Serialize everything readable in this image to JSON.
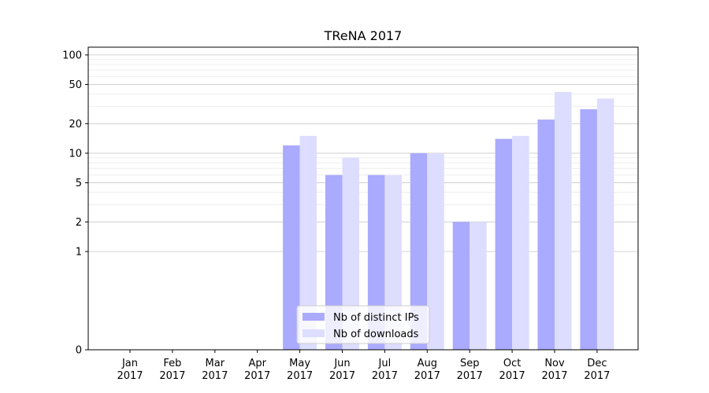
{
  "chart_data": {
    "type": "bar",
    "title": "TReNA 2017",
    "xlabel": "",
    "ylabel": "",
    "categories": [
      "Jan\n2017",
      "Feb\n2017",
      "Mar\n2017",
      "Apr\n2017",
      "May\n2017",
      "Jun\n2017",
      "Jul\n2017",
      "Aug\n2017",
      "Sep\n2017",
      "Oct\n2017",
      "Nov\n2017",
      "Dec\n2017"
    ],
    "series": [
      {
        "name": "Nb of distinct IPs",
        "color": "#aaaaff",
        "values": [
          0,
          0,
          0,
          0,
          12,
          6,
          6,
          10,
          2,
          14,
          22,
          28
        ]
      },
      {
        "name": "Nb of downloads",
        "color": "#ddddff",
        "values": [
          0,
          0,
          0,
          0,
          15,
          9,
          6,
          10,
          2,
          15,
          42,
          36
        ]
      }
    ],
    "yscale": "symlog",
    "ylim": [
      0,
      120
    ],
    "yticks": [
      0,
      1,
      2,
      5,
      10,
      20,
      50,
      100
    ],
    "ytick_labels": [
      "0",
      "1",
      "2",
      "5",
      "10",
      "20",
      "50",
      "100"
    ],
    "grid": true,
    "legend_position": "lower-center"
  }
}
